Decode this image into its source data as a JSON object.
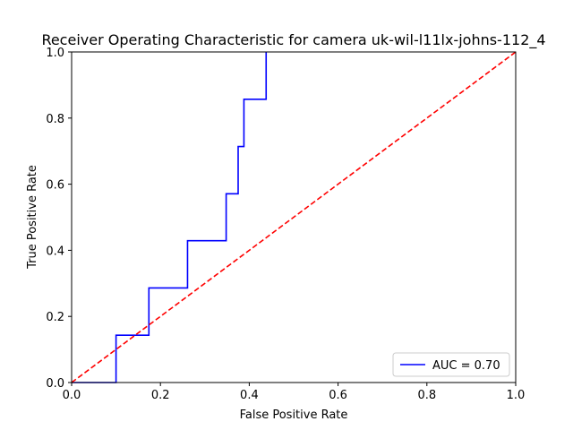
{
  "chart_data": {
    "type": "line",
    "title": "Receiver Operating Characteristic for camera uk-wil-l11lx-johns-112_4",
    "xlabel": "False Positive Rate",
    "ylabel": "True Positive Rate",
    "xlim": [
      0,
      1
    ],
    "ylim": [
      0,
      1
    ],
    "xticks": [
      "0.0",
      "0.2",
      "0.4",
      "0.6",
      "0.8",
      "1.0"
    ],
    "yticks": [
      "0.0",
      "0.2",
      "0.4",
      "0.6",
      "0.8",
      "1.0"
    ],
    "grid": false,
    "legend_position": "lower-right",
    "series": [
      {
        "name": "AUC = 0.70",
        "color": "#0000ff",
        "style": "solid",
        "x": [
          0.0,
          0.1,
          0.1,
          0.174,
          0.174,
          0.261,
          0.261,
          0.348,
          0.348,
          0.375,
          0.375,
          0.388,
          0.388,
          0.438,
          0.438
        ],
        "y": [
          0.0,
          0.0,
          0.143,
          0.143,
          0.286,
          0.286,
          0.429,
          0.429,
          0.571,
          0.571,
          0.714,
          0.714,
          0.857,
          0.857,
          1.0
        ]
      },
      {
        "color": "#ff0000",
        "style": "dashed",
        "x": [
          0,
          1
        ],
        "y": [
          0,
          1
        ]
      }
    ]
  }
}
